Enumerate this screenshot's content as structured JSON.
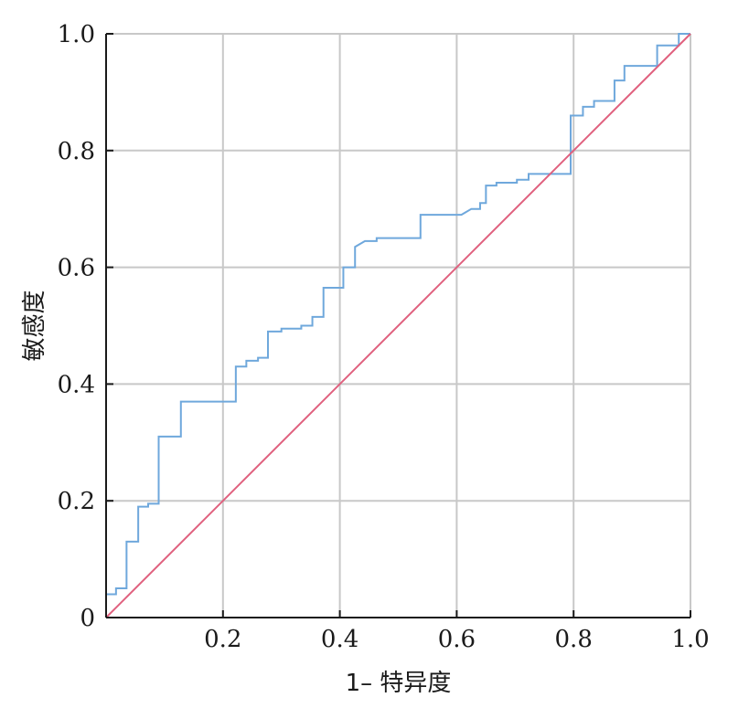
{
  "chart_data": {
    "type": "line",
    "xlabel": "1– 特异度",
    "ylabel": "敏感度",
    "xlim": [
      0,
      1
    ],
    "ylim": [
      0,
      1
    ],
    "grid": true,
    "x_ticks": [
      {
        "value": 0,
        "label": ""
      },
      {
        "value": 0.2,
        "label": "0.2"
      },
      {
        "value": 0.4,
        "label": "0.4"
      },
      {
        "value": 0.6,
        "label": "0.6"
      },
      {
        "value": 0.8,
        "label": "0.8"
      },
      {
        "value": 1.0,
        "label": "1.0"
      }
    ],
    "y_ticks": [
      {
        "value": 0,
        "label": "0"
      },
      {
        "value": 0.2,
        "label": "0.2"
      },
      {
        "value": 0.4,
        "label": "0.4"
      },
      {
        "value": 0.6,
        "label": "0.6"
      },
      {
        "value": 0.8,
        "label": "0.8"
      },
      {
        "value": 1.0,
        "label": "1.0"
      }
    ],
    "series": [
      {
        "color": "#6fa8dc",
        "step": true,
        "points": [
          [
            0,
            0.04
          ],
          [
            0.017,
            0.04
          ],
          [
            0.017,
            0.05
          ],
          [
            0.035,
            0.05
          ],
          [
            0.035,
            0.13
          ],
          [
            0.055,
            0.13
          ],
          [
            0.055,
            0.19
          ],
          [
            0.072,
            0.19
          ],
          [
            0.072,
            0.195
          ],
          [
            0.09,
            0.195
          ],
          [
            0.09,
            0.31
          ],
          [
            0.128,
            0.31
          ],
          [
            0.128,
            0.37
          ],
          [
            0.222,
            0.37
          ],
          [
            0.222,
            0.43
          ],
          [
            0.24,
            0.43
          ],
          [
            0.24,
            0.44
          ],
          [
            0.26,
            0.44
          ],
          [
            0.26,
            0.445
          ],
          [
            0.277,
            0.445
          ],
          [
            0.277,
            0.49
          ],
          [
            0.3,
            0.49
          ],
          [
            0.3,
            0.495
          ],
          [
            0.334,
            0.495
          ],
          [
            0.334,
            0.5
          ],
          [
            0.353,
            0.5
          ],
          [
            0.353,
            0.515
          ],
          [
            0.372,
            0.515
          ],
          [
            0.372,
            0.565
          ],
          [
            0.406,
            0.565
          ],
          [
            0.406,
            0.6
          ],
          [
            0.426,
            0.6
          ],
          [
            0.426,
            0.635
          ],
          [
            0.443,
            0.645
          ],
          [
            0.463,
            0.645
          ],
          [
            0.463,
            0.65
          ],
          [
            0.538,
            0.65
          ],
          [
            0.538,
            0.69
          ],
          [
            0.608,
            0.69
          ],
          [
            0.625,
            0.7
          ],
          [
            0.64,
            0.7
          ],
          [
            0.64,
            0.71
          ],
          [
            0.65,
            0.71
          ],
          [
            0.65,
            0.74
          ],
          [
            0.668,
            0.74
          ],
          [
            0.668,
            0.745
          ],
          [
            0.703,
            0.745
          ],
          [
            0.703,
            0.75
          ],
          [
            0.723,
            0.75
          ],
          [
            0.723,
            0.76
          ],
          [
            0.795,
            0.76
          ],
          [
            0.795,
            0.86
          ],
          [
            0.816,
            0.86
          ],
          [
            0.816,
            0.875
          ],
          [
            0.835,
            0.875
          ],
          [
            0.835,
            0.885
          ],
          [
            0.87,
            0.885
          ],
          [
            0.87,
            0.92
          ],
          [
            0.887,
            0.92
          ],
          [
            0.887,
            0.945
          ],
          [
            0.943,
            0.945
          ],
          [
            0.943,
            0.98
          ],
          [
            0.98,
            0.98
          ],
          [
            0.98,
            1.0
          ],
          [
            1.0,
            1.0
          ]
        ]
      },
      {
        "color": "#e0607e",
        "step": false,
        "points": [
          [
            0,
            0
          ],
          [
            1,
            1
          ]
        ]
      }
    ]
  }
}
